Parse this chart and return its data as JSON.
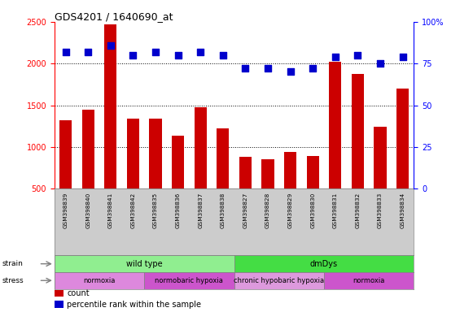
{
  "title": "GDS4201 / 1640690_at",
  "samples": [
    "GSM398839",
    "GSM398840",
    "GSM398841",
    "GSM398842",
    "GSM398835",
    "GSM398836",
    "GSM398837",
    "GSM398838",
    "GSM398827",
    "GSM398828",
    "GSM398829",
    "GSM398830",
    "GSM398831",
    "GSM398832",
    "GSM398833",
    "GSM398834"
  ],
  "counts": [
    1320,
    1450,
    2470,
    1340,
    1340,
    1140,
    1480,
    1220,
    880,
    850,
    940,
    890,
    2020,
    1880,
    1240,
    1700
  ],
  "percentiles": [
    82,
    82,
    86,
    80,
    82,
    80,
    82,
    80,
    72,
    72,
    70,
    72,
    79,
    80,
    75,
    79
  ],
  "bar_color": "#cc0000",
  "dot_color": "#0000cc",
  "ylim_left": [
    500,
    2500
  ],
  "ylim_right": [
    0,
    100
  ],
  "yticks_left": [
    500,
    1000,
    1500,
    2000,
    2500
  ],
  "yticks_right": [
    0,
    25,
    50,
    75,
    100
  ],
  "strain_groups": [
    {
      "label": "wild type",
      "start": 0,
      "end": 8,
      "color": "#90ee90"
    },
    {
      "label": "dmDys",
      "start": 8,
      "end": 16,
      "color": "#44dd44"
    }
  ],
  "stress_groups": [
    {
      "label": "normoxia",
      "start": 0,
      "end": 4,
      "color": "#dd88dd"
    },
    {
      "label": "normobaric hypoxia",
      "start": 4,
      "end": 8,
      "color": "#cc55cc"
    },
    {
      "label": "chronic hypobaric hypoxia",
      "start": 8,
      "end": 12,
      "color": "#dd99dd"
    },
    {
      "label": "normoxia",
      "start": 12,
      "end": 16,
      "color": "#cc55cc"
    }
  ],
  "bg_color": "#ffffff",
  "tick_area_bg": "#cccccc",
  "grid_dotted_vals": [
    1000,
    1500,
    2000
  ],
  "n_samples": 16
}
